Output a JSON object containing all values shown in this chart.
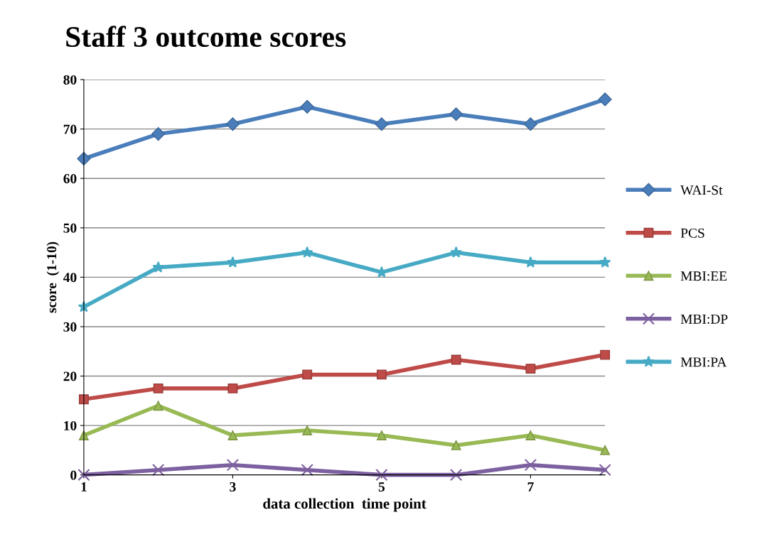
{
  "chart_data": {
    "type": "line",
    "title": "Staff 3 outcome scores",
    "xlabel": "data collection  time point",
    "ylabel": "score  (1-10)",
    "x": [
      1,
      2,
      3,
      4,
      5,
      6,
      7,
      8
    ],
    "xlim": [
      1,
      8
    ],
    "xticks": [
      1,
      3,
      5,
      7
    ],
    "ylim": [
      0,
      80
    ],
    "yticks": [
      0,
      10,
      20,
      30,
      40,
      50,
      60,
      70,
      80
    ],
    "grid": "y",
    "legend": "right",
    "series": [
      {
        "name": "WAI-St",
        "color": "#4a7ebb",
        "marker": "diamond",
        "values": [
          64,
          69,
          71,
          74.5,
          71,
          73,
          71,
          76
        ]
      },
      {
        "name": "PCS",
        "color": "#be4b48",
        "marker": "square",
        "values": [
          15.3,
          17.5,
          17.5,
          20.3,
          20.3,
          23.3,
          21.5,
          24.3
        ]
      },
      {
        "name": "MBI:EE",
        "color": "#98b954",
        "marker": "triangle",
        "values": [
          8,
          14,
          8,
          9,
          8,
          6,
          8,
          5
        ]
      },
      {
        "name": "MBI:DP",
        "color": "#7d60a0",
        "marker": "cross",
        "values": [
          0,
          1,
          2,
          1,
          0,
          0,
          2,
          1
        ]
      },
      {
        "name": "MBI:PA",
        "color": "#46aac5",
        "marker": "star",
        "values": [
          34,
          42,
          43,
          45,
          41,
          45,
          43,
          43
        ]
      }
    ]
  }
}
